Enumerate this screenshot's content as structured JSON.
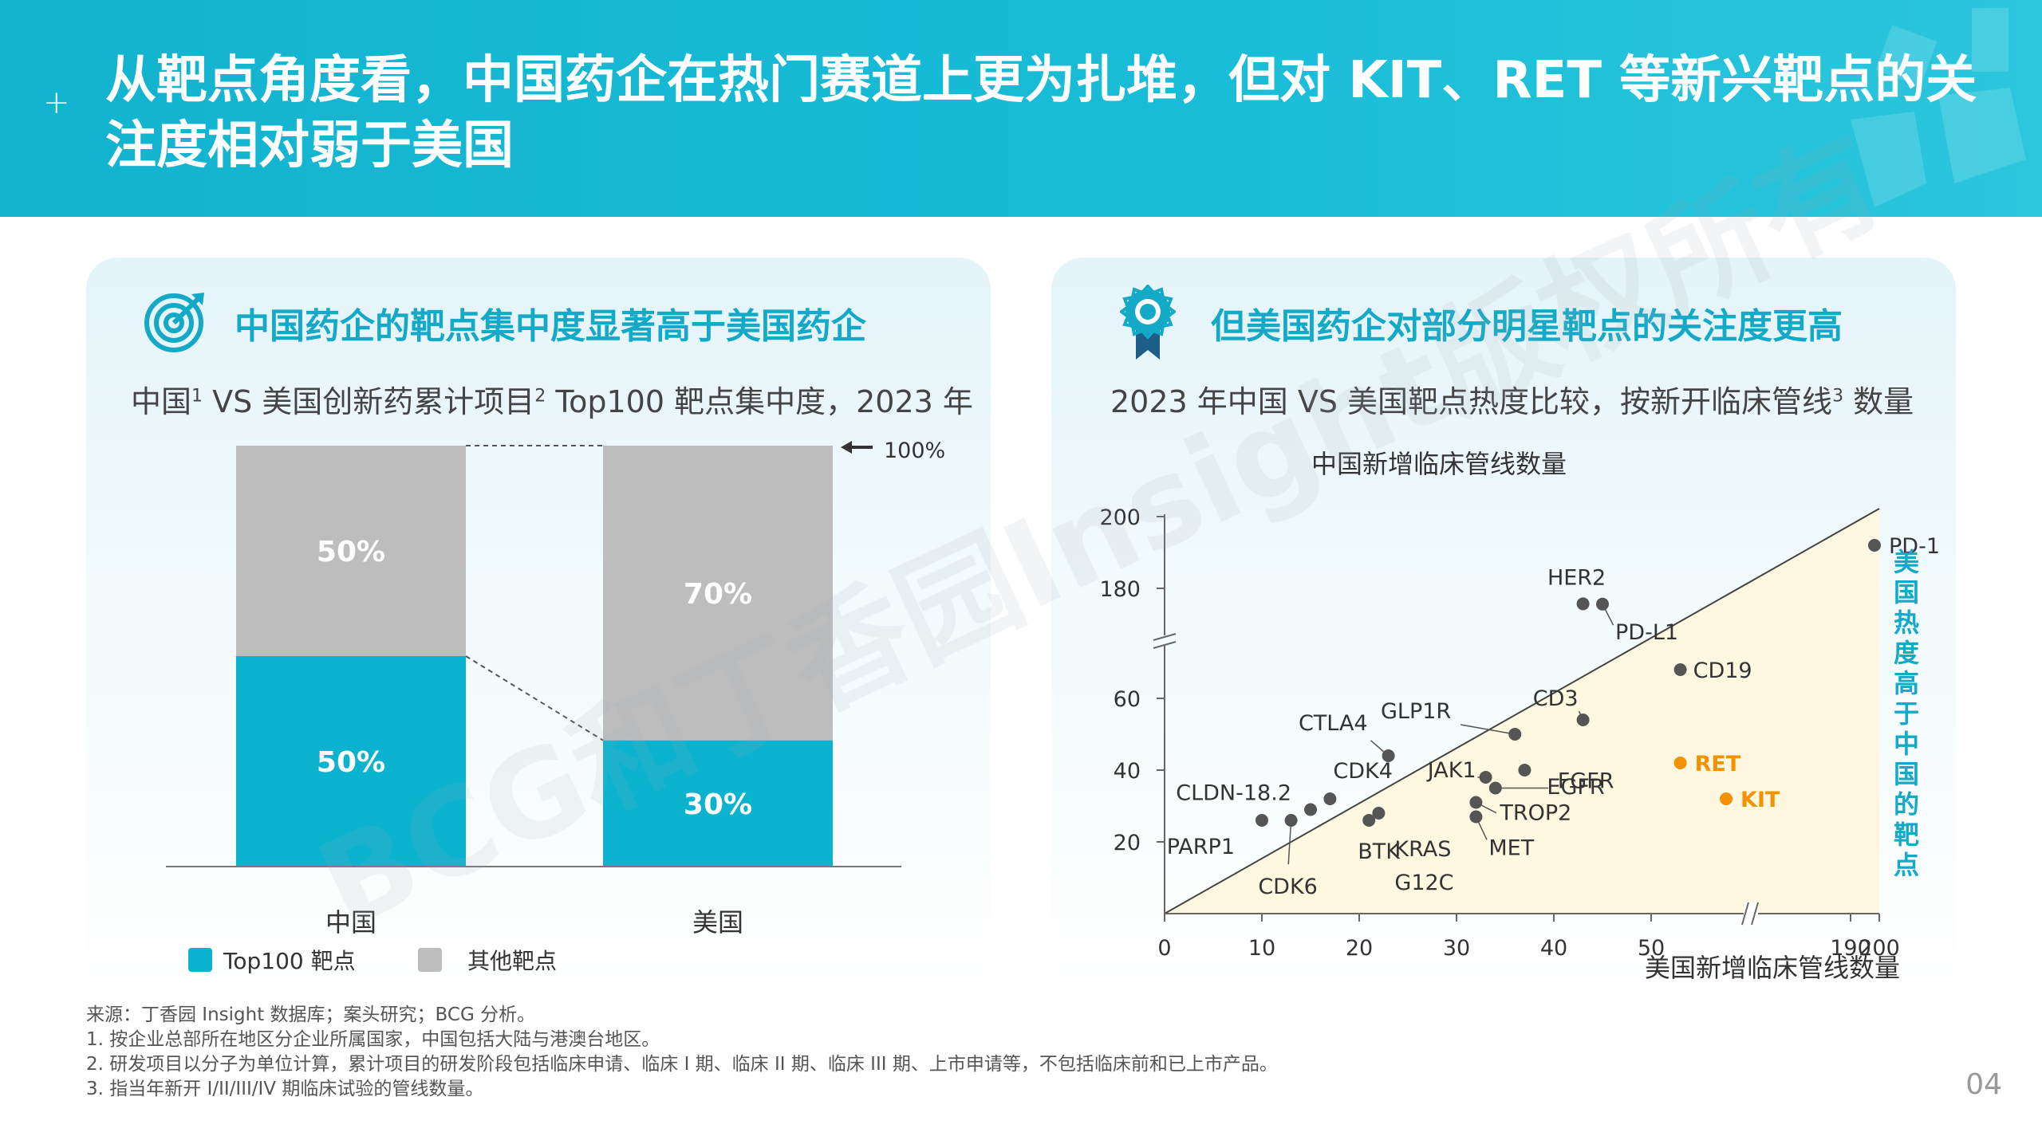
{
  "header": {
    "title": "从靶点角度看，中国药企在热门赛道上更为扎堆，但对 KIT、RET 等新兴靶点的关注度相对弱于美国"
  },
  "left": {
    "title": "中国药企的靶点集中度显著高于美国药企",
    "subtitle_parts": [
      "中国",
      "1",
      " VS 美国创新药累计项目",
      "2",
      " Top100 靶点集中度，2023 年"
    ]
  },
  "right": {
    "title": "但美国药企对部分明星靶点的关注度更高",
    "subtitle_parts": [
      "2023 年中国 VS 美国靶点热度比较，按新开临床管线",
      "3",
      " 数量"
    ]
  },
  "chart_data": [
    {
      "type": "bar",
      "stacked": true,
      "categories": [
        "中国",
        "美国"
      ],
      "series": [
        {
          "name": "Top100 靶点",
          "values": [
            50,
            30
          ],
          "labels": [
            "50%",
            "30%"
          ],
          "color": "#0bb3cf"
        },
        {
          "name": "其他靶点",
          "values": [
            50,
            70
          ],
          "labels": [
            "50%",
            "70%"
          ],
          "color": "#bdbdbd"
        }
      ],
      "ylim": [
        0,
        100
      ],
      "annotation": "100%",
      "legend_position": "bottom-left"
    },
    {
      "type": "scatter",
      "xlabel": "美国新增临床管线数量",
      "ylabel": "中国新增临床管线数量",
      "x_ticks": [
        "0",
        "10",
        "20",
        "30",
        "40",
        "50",
        "190",
        "200"
      ],
      "y_ticks": [
        "20",
        "40",
        "60",
        "180",
        "200"
      ],
      "x_break": [
        55,
        185
      ],
      "y_break": [
        70,
        175
      ],
      "region_label": "美国热度高于中国的靶点",
      "highlight_color": "#f39200",
      "points": [
        {
          "label": "PD-1",
          "x": 192,
          "y": 192,
          "highlight": false
        },
        {
          "label": "CD19",
          "x": 53,
          "y": 68,
          "highlight": false
        },
        {
          "label": "HER2",
          "x": 43,
          "y": 73,
          "highlight": false
        },
        {
          "label": "PD-L1",
          "x": 45,
          "y": 71,
          "highlight": false
        },
        {
          "label": "CD3",
          "x": 43,
          "y": 54,
          "highlight": false
        },
        {
          "label": "GLP1R",
          "x": 36,
          "y": 50,
          "highlight": false
        },
        {
          "label": "EGFR",
          "x": 37,
          "y": 40,
          "highlight": false
        },
        {
          "label": "FGFR",
          "x": 34,
          "y": 35,
          "highlight": false
        },
        {
          "label": "JAK1",
          "x": 33,
          "y": 38,
          "highlight": false
        },
        {
          "label": "TROP2",
          "x": 32,
          "y": 31,
          "highlight": false
        },
        {
          "label": "MET",
          "x": 32,
          "y": 27,
          "highlight": false
        },
        {
          "label": "CTLA4",
          "x": 23,
          "y": 44,
          "highlight": false
        },
        {
          "label": "CDK4",
          "x": 17,
          "y": 32,
          "highlight": false
        },
        {
          "label": "CLDN-18.2",
          "x": 15,
          "y": 29,
          "highlight": false
        },
        {
          "label": "CDK6",
          "x": 13,
          "y": 26,
          "highlight": false
        },
        {
          "label": "PARP1",
          "x": 10,
          "y": 26,
          "highlight": false
        },
        {
          "label": "BTK",
          "x": 21,
          "y": 26,
          "highlight": false
        },
        {
          "label": "KRAS G12C",
          "x": 22,
          "y": 28,
          "highlight": false
        },
        {
          "label": "RET",
          "x": 53,
          "y": 42,
          "highlight": true
        },
        {
          "label": "KIT",
          "x": 57,
          "y": 32,
          "highlight": true
        }
      ]
    }
  ],
  "notes": [
    "来源：丁香园 Insight 数据库；案头研究；BCG 分析。",
    "1. 按企业总部所在地区分企业所属国家，中国包括大陆与港澳台地区。",
    "2. 研发项目以分子为单位计算，累计项目的研发阶段包括临床申请、临床 I 期、临床 II 期、临床 III 期、上市申请等，不包括临床前和已上市产品。",
    "3. 指当年新开 I/II/III/IV 期临床试验的管线数量。"
  ],
  "page_number": "04",
  "watermark": "BCG和丁香园Insight版权所有"
}
